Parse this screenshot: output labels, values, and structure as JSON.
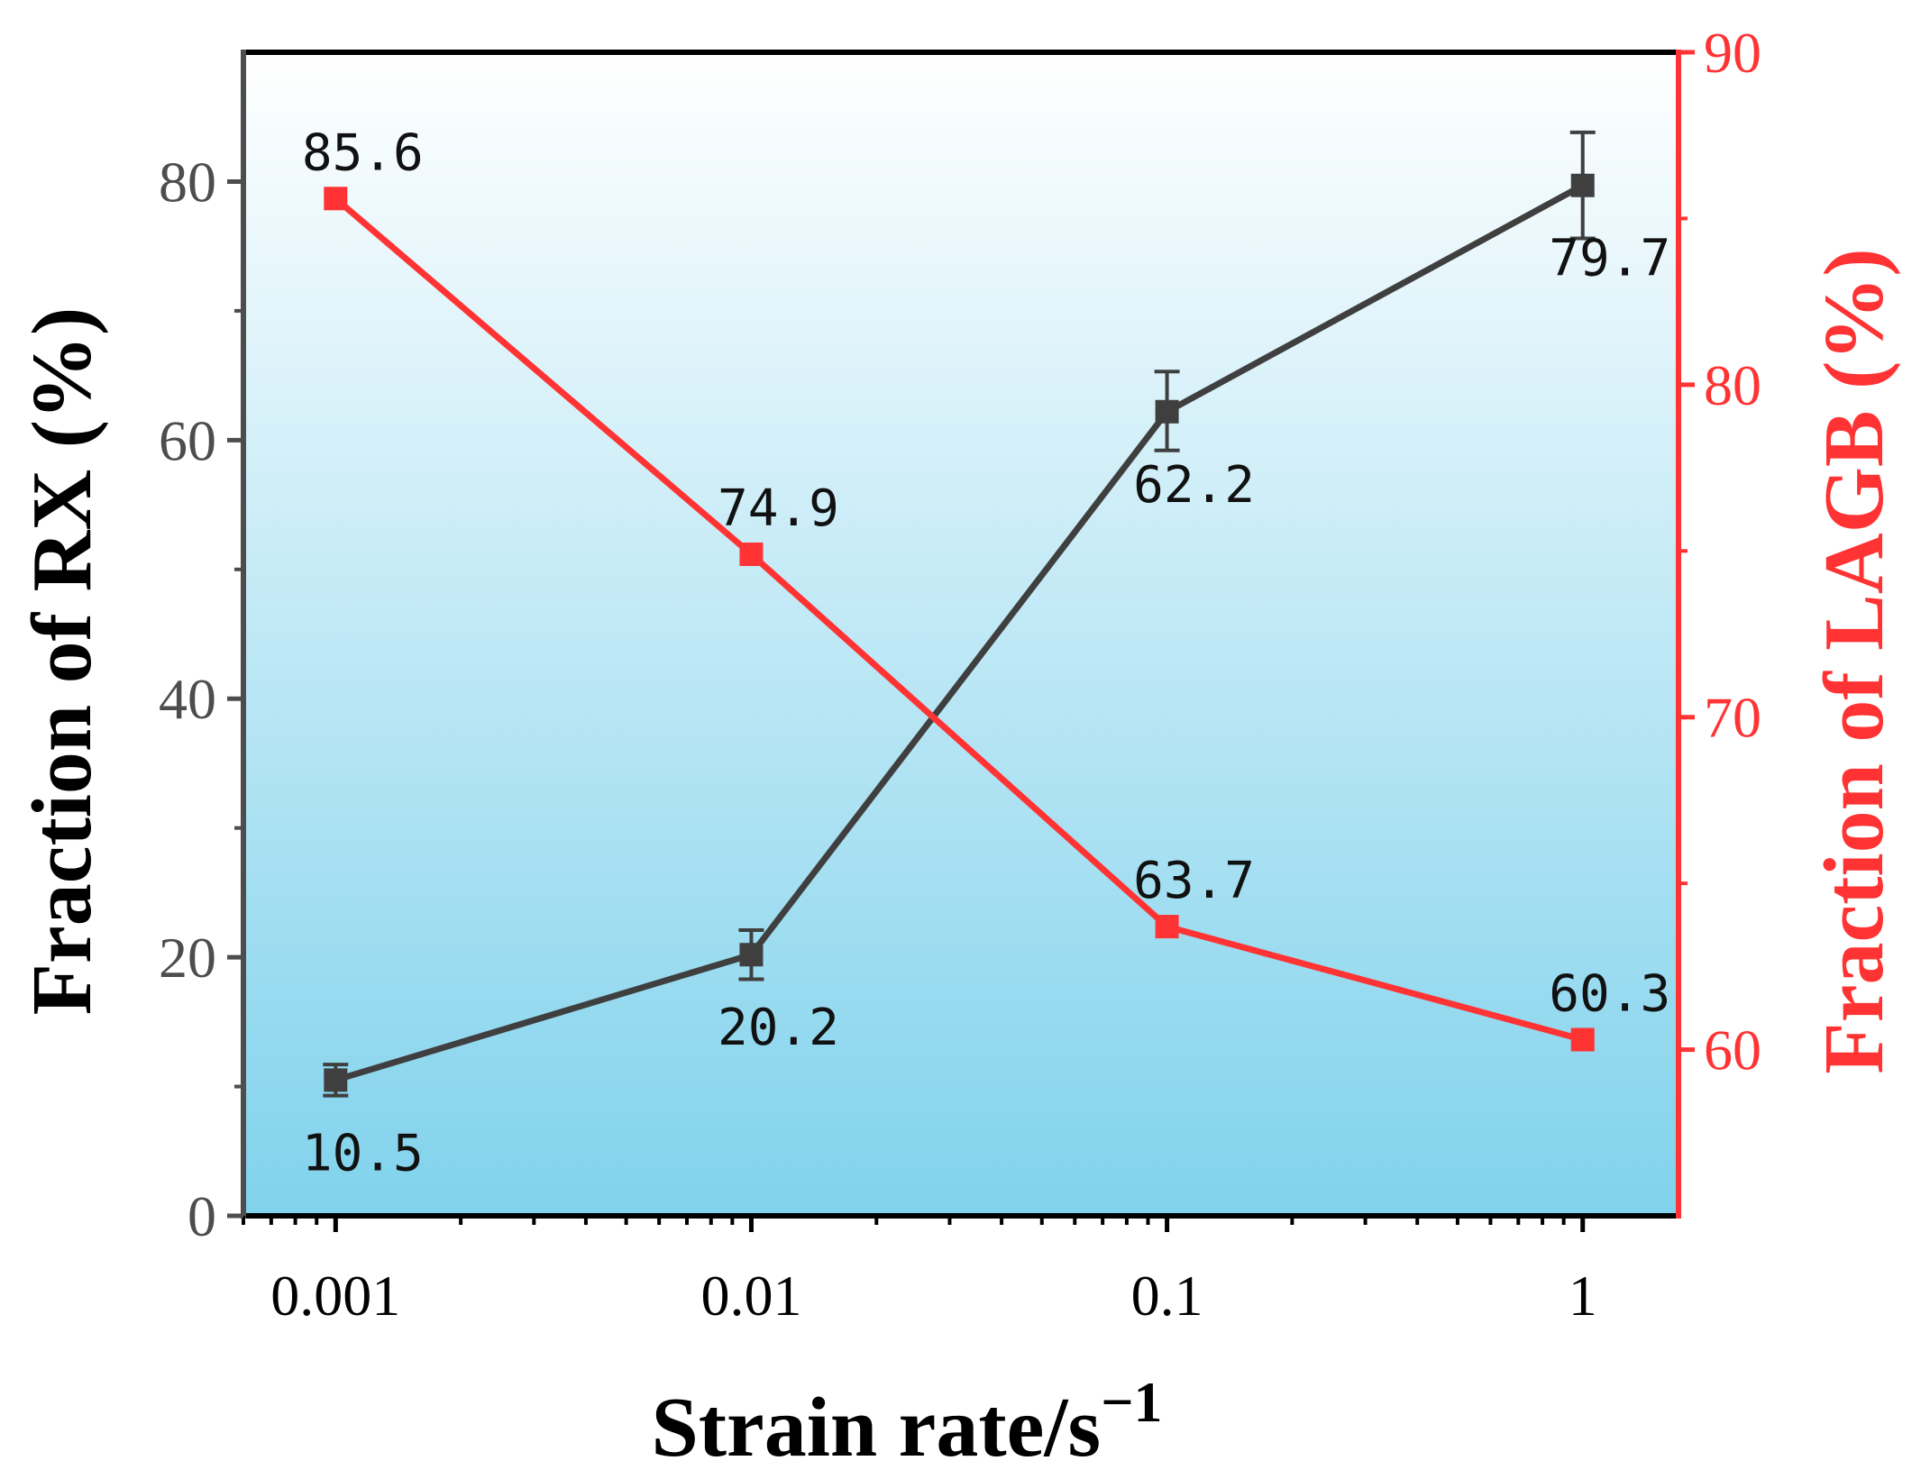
{
  "chart_data": {
    "type": "line",
    "x": [
      0.001,
      0.01,
      0.1,
      1
    ],
    "x_tick_labels": [
      "0.001",
      "0.01",
      "0.1",
      "1"
    ],
    "x_scale": "log",
    "xlim": [
      0.0006,
      1.7
    ],
    "xlabel": "Strain rate/s",
    "xlabel_superscript": "−1",
    "left_axis": {
      "label": "Fraction of RX (%)",
      "ylim": [
        0,
        90
      ],
      "ticks": [
        0,
        20,
        40,
        60,
        80
      ],
      "minor_ticks": [
        10,
        30,
        50,
        70
      ],
      "color": "#4d4d4d"
    },
    "right_axis": {
      "label": "Fraction of LAGB (%)",
      "ylim": [
        55,
        90
      ],
      "ticks": [
        60,
        70,
        80,
        90
      ],
      "minor_ticks": [
        65,
        75,
        85
      ],
      "color": "#ff3333"
    },
    "series": [
      {
        "name": "Fraction of RX",
        "axis": "left",
        "color": "#3f3f3f",
        "values": [
          10.5,
          20.2,
          62.2,
          79.7
        ],
        "error_low": [
          9.3,
          18.3,
          59.2,
          75.6
        ],
        "error_high": [
          11.7,
          22.1,
          65.3,
          83.8
        ],
        "labels": [
          "10.5",
          "20.2",
          "62.2",
          "79.7"
        ],
        "label_positions": [
          "below",
          "below",
          "below",
          "below"
        ]
      },
      {
        "name": "Fraction of LAGB",
        "axis": "right",
        "color": "#ff3333",
        "values": [
          85.6,
          74.9,
          63.7,
          60.3
        ],
        "labels": [
          "85.6",
          "74.9",
          "63.7",
          "60.3"
        ],
        "label_positions": [
          "above",
          "above",
          "above",
          "above"
        ]
      }
    ],
    "background_gradient": [
      "#ffffff",
      "#80d2ec"
    ],
    "grid": false
  }
}
